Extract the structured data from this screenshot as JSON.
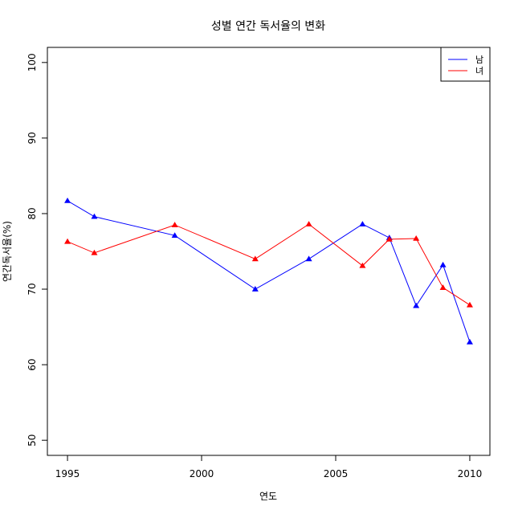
{
  "chart_data": {
    "type": "line",
    "title": "성별 연간 독서율의 변화",
    "xlabel": "연도",
    "ylabel": "연간독서율(%)",
    "xlim": [
      1994.25,
      2010.75
    ],
    "ylim": [
      48,
      102
    ],
    "xticks": [
      1995,
      2000,
      2005,
      2010
    ],
    "yticks": [
      50,
      60,
      70,
      80,
      90,
      100
    ],
    "grid": false,
    "legend_position": "top-right",
    "series": [
      {
        "name": "남",
        "color": "#0000ff",
        "marker": "triangle",
        "x": [
          1995,
          1996,
          1999,
          2002,
          2004,
          2006,
          2007,
          2008,
          2009,
          2010
        ],
        "y": [
          81.7,
          79.6,
          77.1,
          70.0,
          74.0,
          78.6,
          76.8,
          67.8,
          73.2,
          63.0
        ]
      },
      {
        "name": "녀",
        "color": "#ff0000",
        "marker": "triangle",
        "x": [
          1995,
          1996,
          1999,
          2002,
          2004,
          2006,
          2007,
          2008,
          2009,
          2010
        ],
        "y": [
          76.3,
          74.8,
          78.5,
          74.0,
          78.6,
          73.1,
          76.6,
          76.7,
          70.2,
          67.9
        ]
      }
    ]
  }
}
